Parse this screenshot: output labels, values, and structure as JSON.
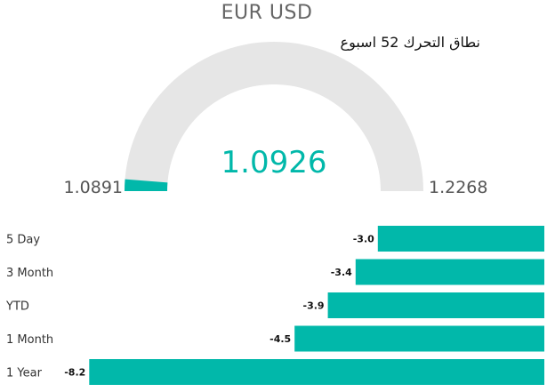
{
  "chart_data": [
    {
      "type": "gauge",
      "title": "EUR USD",
      "subtitle": "نطاق التحرك 52 اسبوع",
      "min": 1.0891,
      "max": 1.2268,
      "value": 1.0926,
      "min_label": "1.0891",
      "max_label": "1.2268",
      "value_label": "1.0926",
      "colors": {
        "track": "#e6e6e6",
        "fill": "#01b8aa",
        "value_text": "#01b8aa"
      }
    },
    {
      "type": "bar",
      "orientation": "horizontal",
      "direction": "negative-left",
      "categories": [
        "5 Day",
        "3 Month",
        "YTD",
        "1 Month",
        "1 Year"
      ],
      "values": [
        -3.0,
        -3.4,
        -3.9,
        -4.5,
        -8.2
      ],
      "value_labels": [
        "-3.0",
        "-3.4",
        "-3.9",
        "-4.5",
        "-8.2"
      ],
      "colors": {
        "bar": "#01b8aa"
      }
    }
  ]
}
